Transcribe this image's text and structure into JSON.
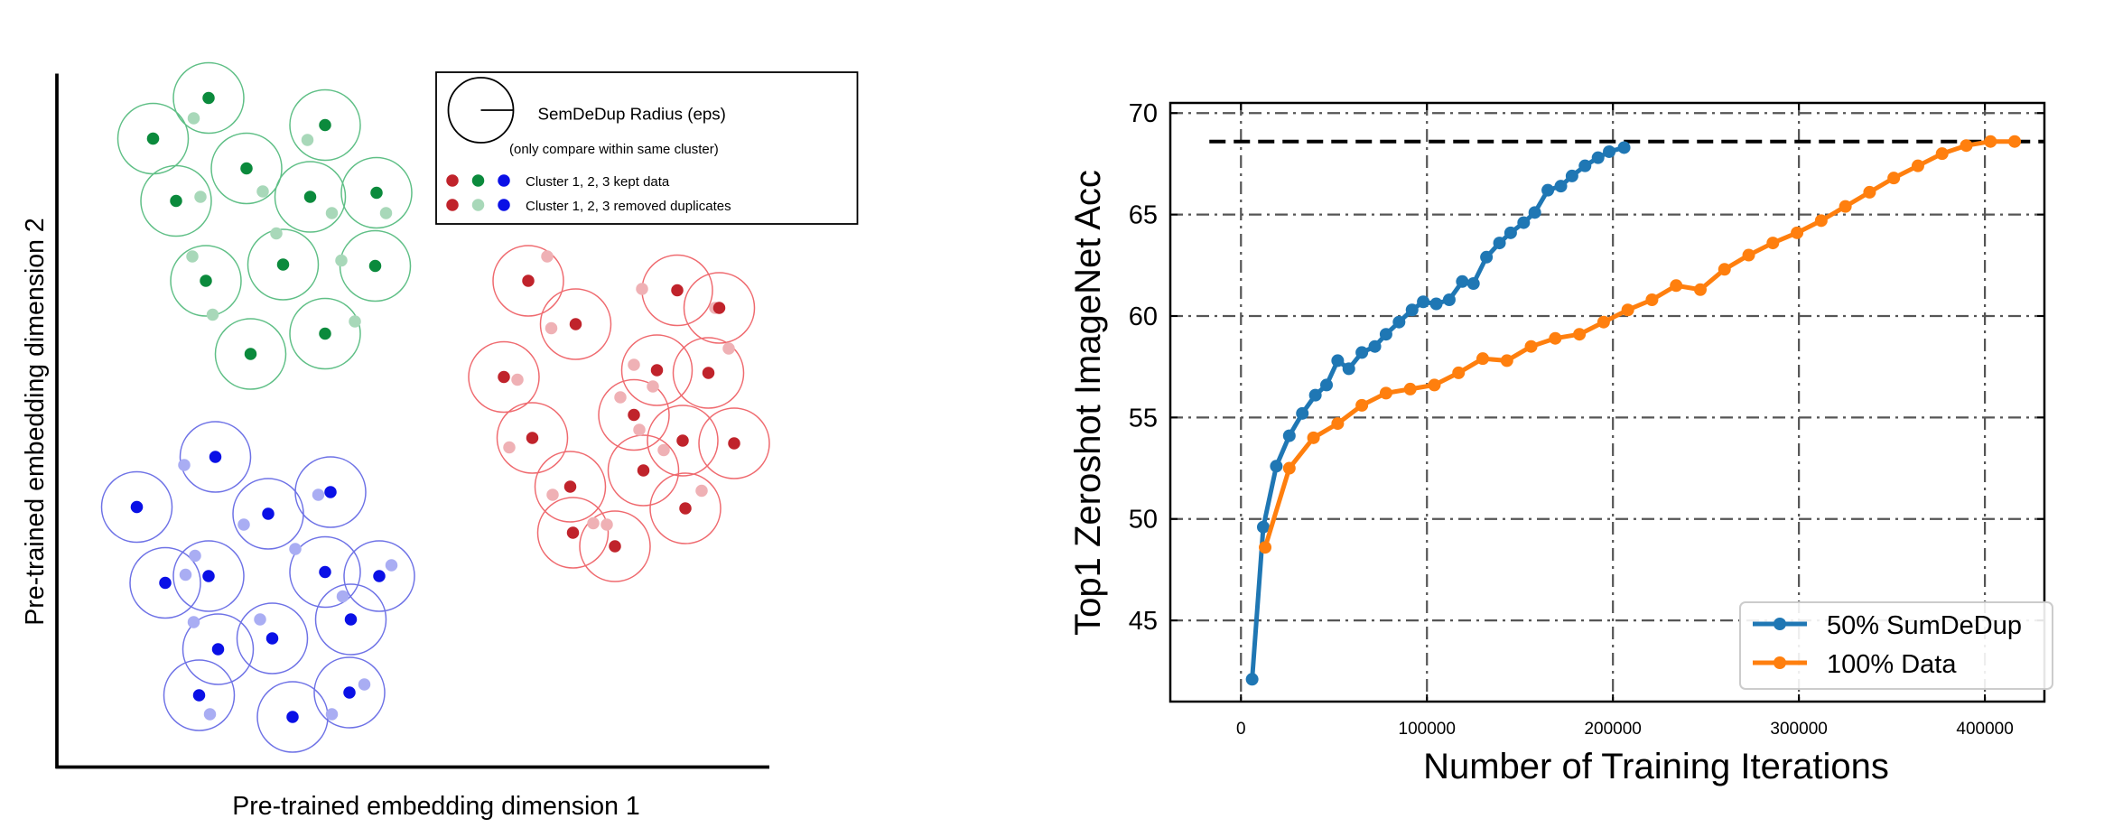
{
  "colors": {
    "green_kept": "#0b8a3c",
    "green_removed": "#a8d8b9",
    "green_circle": "#5fbf86",
    "red_kept": "#c0232b",
    "red_removed": "#efb1b5",
    "red_circle": "#ef6a6f",
    "blue_kept": "#0a10e6",
    "blue_removed": "#a9adf3",
    "blue_circle": "#6e72e6",
    "series_blue": "#1f77b4",
    "series_orange": "#ff7f0e"
  },
  "chart_data": [
    {
      "type": "scatter",
      "title": "",
      "xlabel": "Pre-trained embedding dimension 1",
      "ylabel": "Pre-trained embedding dimension 2",
      "legend": {
        "radius_title": "SemDeDup Radius (eps)",
        "radius_subtitle": "(only compare within same cluster)",
        "kept_label": "Cluster 1, 2, 3 kept data",
        "removed_label": "Cluster 1, 2, 3 removed duplicates"
      },
      "clusters": [
        {
          "name": "Cluster 1",
          "color": "green",
          "points": [
            {
              "c": [
                142,
                55
              ],
              "r": [
                131,
                70
              ]
            },
            {
              "c": [
                101,
                85
              ],
              "r": [
                101,
                85
              ]
            },
            {
              "c": [
                228,
                75
              ],
              "r": [
                215,
                86
              ]
            },
            {
              "c": [
                170,
                107
              ],
              "r": [
                182,
                124
              ]
            },
            {
              "c": [
                118,
                131
              ],
              "r": [
                136,
                128
              ]
            },
            {
              "c": [
                217,
                128
              ],
              "r": [
                233,
                140
              ]
            },
            {
              "c": [
                266,
                125
              ],
              "r": [
                273,
                140
              ]
            },
            {
              "c": [
                140,
                190
              ],
              "r": [
                130,
                172
              ]
            },
            {
              "c": [
                197,
                178
              ],
              "r": [
                192,
                155
              ]
            },
            {
              "c": [
                265,
                179
              ],
              "r": [
                240,
                175
              ]
            },
            {
              "c": [
                228,
                229
              ],
              "r": [
                250,
                220
              ]
            },
            {
              "c": [
                173,
                244
              ],
              "r": [
                145,
                215
              ]
            }
          ]
        },
        {
          "name": "Cluster 2",
          "color": "red",
          "points": [
            {
              "c": [
                378,
                190
              ],
              "r": [
                392,
                172
              ]
            },
            {
              "c": [
                413,
                222
              ],
              "r": [
                395,
                225
              ]
            },
            {
              "c": [
                360,
                261
              ],
              "r": [
                370,
                263
              ]
            },
            {
              "c": [
                381,
                306
              ],
              "r": [
                364,
                313
              ]
            },
            {
              "c": [
                488,
                197
              ],
              "r": [
                462,
                196
              ]
            },
            {
              "c": [
                519,
                210
              ],
              "r": [
                516,
                210
              ]
            },
            {
              "c": [
                473,
                256
              ],
              "r": [
                456,
                252
              ]
            },
            {
              "c": [
                511,
                258
              ],
              "r": [
                526,
                240
              ]
            },
            {
              "c": [
                456,
                289
              ],
              "r": [
                446,
                276
              ]
            },
            {
              "c": [
                492,
                308
              ],
              "r": [
                470,
                268
              ]
            },
            {
              "c": [
                530,
                310
              ],
              "r": [
                460,
                300
              ]
            },
            {
              "c": [
                409,
                342
              ],
              "r": [
                396,
                348
              ]
            },
            {
              "c": [
                463,
                330
              ],
              "r": [
                478,
                315
              ]
            },
            {
              "c": [
                494,
                358
              ],
              "r": [
                506,
                345
              ]
            },
            {
              "c": [
                411,
                376
              ],
              "r": [
                426,
                369
              ]
            },
            {
              "c": [
                442,
                386
              ],
              "r": [
                436,
                370
              ]
            }
          ]
        },
        {
          "name": "Cluster 3",
          "color": "blue",
          "points": [
            {
              "c": [
                147,
                320
              ],
              "r": [
                124,
                326
              ]
            },
            {
              "c": [
                89,
                357
              ],
              "r": [
                89,
                357
              ]
            },
            {
              "c": [
                186,
                362
              ],
              "r": [
                168,
                370
              ]
            },
            {
              "c": [
                232,
                346
              ],
              "r": [
                223,
                348
              ]
            },
            {
              "c": [
                110,
                413
              ],
              "r": [
                125,
                407
              ]
            },
            {
              "c": [
                142,
                408
              ],
              "r": [
                132,
                393
              ]
            },
            {
              "c": [
                228,
                405
              ],
              "r": [
                206,
                388
              ]
            },
            {
              "c": [
                268,
                408
              ],
              "r": [
                277,
                400
              ]
            },
            {
              "c": [
                247,
                440
              ],
              "r": [
                241,
                423
              ]
            },
            {
              "c": [
                189,
                454
              ],
              "r": [
                180,
                440
              ]
            },
            {
              "c": [
                149,
                462
              ],
              "r": [
                131,
                442
              ]
            },
            {
              "c": [
                246,
                494
              ],
              "r": [
                257,
                488
              ]
            },
            {
              "c": [
                135,
                496
              ],
              "r": [
                143,
                510
              ]
            },
            {
              "c": [
                204,
                512
              ],
              "r": [
                233,
                510
              ]
            }
          ]
        }
      ]
    },
    {
      "type": "line",
      "title": "",
      "xlabel": "Number of Training Iterations",
      "ylabel": "Top1 Zeroshot ImageNet Acc",
      "xlim": [
        -38000,
        432000
      ],
      "ylim": [
        41,
        70.5
      ],
      "xticks": [
        0,
        100000,
        200000,
        300000,
        400000
      ],
      "xtick_labels": [
        "0",
        "100000",
        "200000",
        "300000",
        "400000"
      ],
      "yticks": [
        45,
        50,
        55,
        60,
        65,
        70
      ],
      "ytick_labels": [
        "45",
        "50",
        "55",
        "60",
        "65",
        "70"
      ],
      "grid": true,
      "legend_position": "lower-right",
      "reference_line": {
        "y": 68.6,
        "style": "dashed"
      },
      "series": [
        {
          "name": "50% SumDeDup",
          "color": "#1f77b4",
          "x": [
            6000,
            12000,
            19000,
            26000,
            33000,
            40000,
            46000,
            52000,
            58000,
            65000,
            72000,
            78000,
            85000,
            92000,
            98000,
            105000,
            112000,
            119000,
            125000,
            132000,
            139000,
            145000,
            152000,
            158000,
            165000,
            172000,
            178000,
            185000,
            192000,
            198000,
            206000
          ],
          "y": [
            42.1,
            49.6,
            52.6,
            54.1,
            55.2,
            56.1,
            56.6,
            57.8,
            57.4,
            58.2,
            58.5,
            59.1,
            59.7,
            60.3,
            60.7,
            60.6,
            60.8,
            61.7,
            61.6,
            62.9,
            63.6,
            64.1,
            64.6,
            65.1,
            66.2,
            66.4,
            66.9,
            67.4,
            67.8,
            68.1,
            68.3
          ]
        },
        {
          "name": "100% Data",
          "color": "#ff7f0e",
          "x": [
            13000,
            26000,
            39000,
            52000,
            65000,
            78000,
            91000,
            104000,
            117000,
            130000,
            143000,
            156000,
            169000,
            182000,
            195000,
            208000,
            221000,
            234000,
            247000,
            260000,
            273000,
            286000,
            299000,
            312000,
            325000,
            338000,
            351000,
            364000,
            377000,
            390000,
            403000,
            416000
          ],
          "y": [
            48.6,
            52.5,
            54.0,
            54.7,
            55.6,
            56.2,
            56.4,
            56.6,
            57.2,
            57.9,
            57.8,
            58.5,
            58.9,
            59.1,
            59.7,
            60.3,
            60.8,
            61.5,
            61.3,
            62.3,
            63.0,
            63.6,
            64.1,
            64.7,
            65.4,
            66.1,
            66.8,
            67.4,
            68.0,
            68.4,
            68.6,
            68.6
          ]
        }
      ]
    }
  ]
}
